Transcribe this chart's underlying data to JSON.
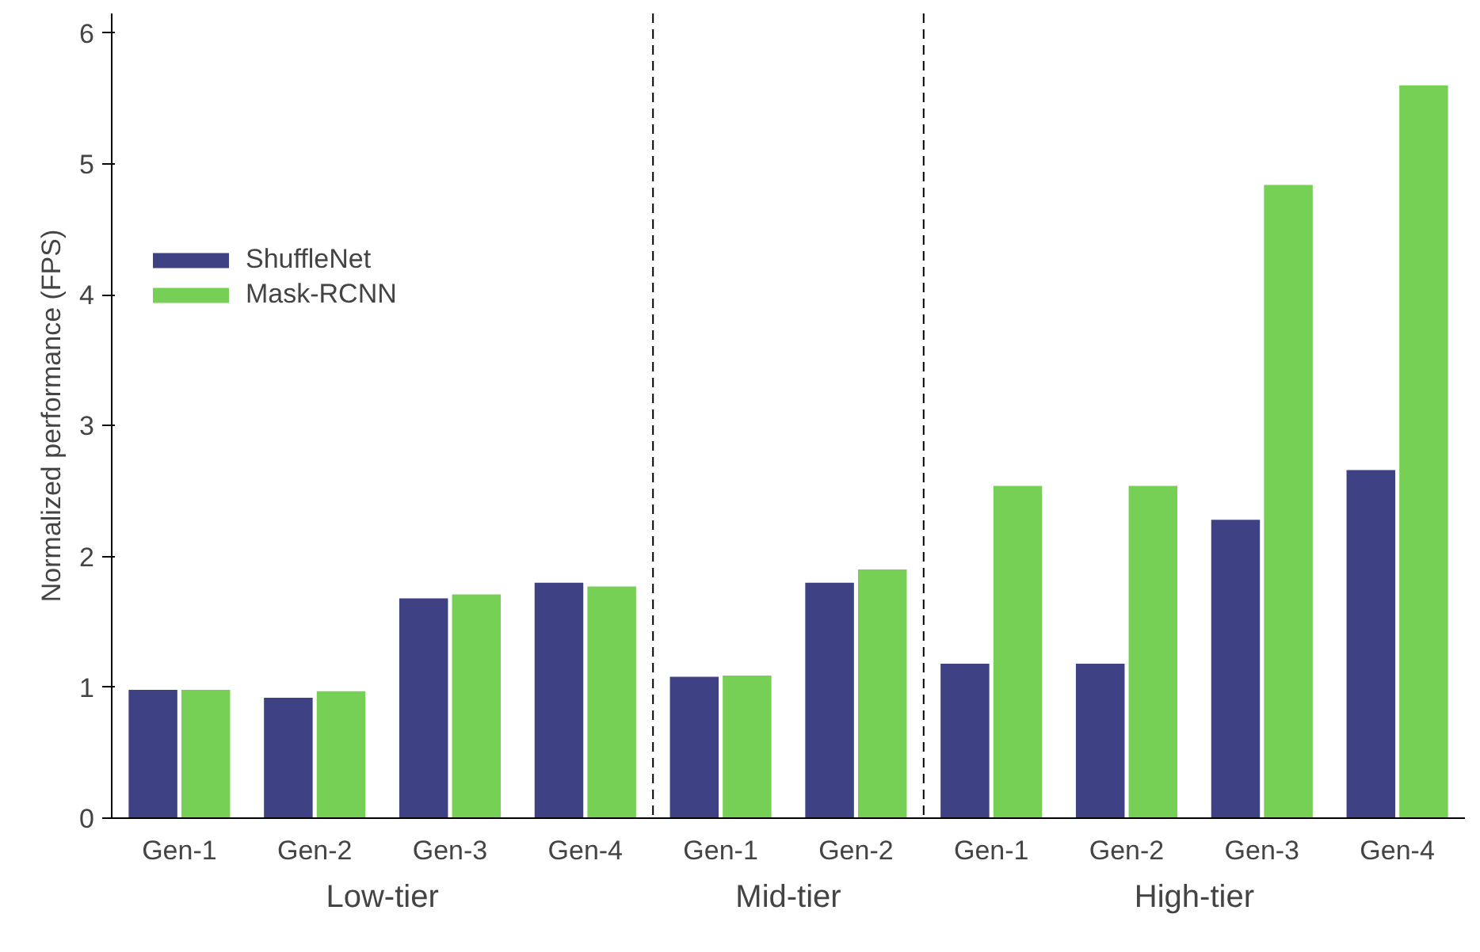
{
  "chart_data": {
    "type": "bar",
    "ylabel": "Normalized performance (FPS)",
    "categories": [
      "Gen-1",
      "Gen-2",
      "Gen-3",
      "Gen-4",
      "Gen-1",
      "Gen-2",
      "Gen-1",
      "Gen-2",
      "Gen-3",
      "Gen-4"
    ],
    "series": [
      {
        "name": "ShuffleNet",
        "color": "#3f4185",
        "values": [
          0.98,
          0.92,
          1.68,
          1.8,
          1.08,
          1.8,
          1.18,
          1.18,
          2.28,
          2.66
        ]
      },
      {
        "name": "Mask-RCNN",
        "color": "#76d055",
        "values": [
          0.98,
          0.97,
          1.71,
          1.77,
          1.09,
          1.9,
          2.54,
          2.54,
          4.84,
          5.6
        ]
      }
    ],
    "ylim": [
      0,
      6.15
    ],
    "yticks": [
      0,
      1,
      2,
      3,
      4,
      5,
      6
    ],
    "grid": false,
    "legend": "top left",
    "annotations": [
      "Low-tier",
      "Mid-tier",
      "High-tier"
    ]
  }
}
